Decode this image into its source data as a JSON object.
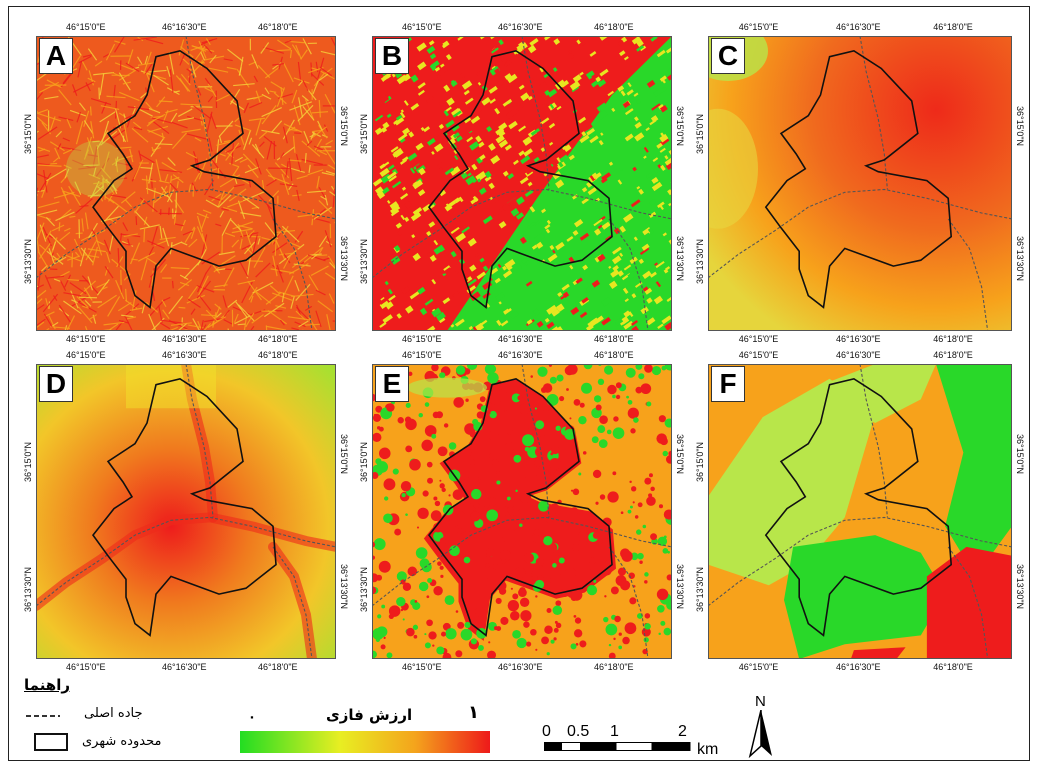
{
  "colors": {
    "ramp_low": "#22dd22",
    "ramp_mid1": "#e8ee22",
    "ramp_mid2": "#f4a41c",
    "ramp_high": "#ee1a1a",
    "orange": "#f7a21b",
    "red": "#ee1c1c",
    "green": "#29d829",
    "yellowgreen": "#b8e64a"
  },
  "panels": [
    {
      "id": "A",
      "ticks_top": [
        "46°15'0\"E",
        "46°16'30\"E",
        "46°18'0\"E"
      ],
      "ticks_bottom": [
        "46°15'0\"E",
        "46°16'30\"E",
        "46°18'0\"E"
      ],
      "ticks_left": [
        "36°15'0\"N",
        "36°13'30\"N"
      ],
      "ticks_right": [
        "36°15'0\"N",
        "36°13'30\"N"
      ]
    },
    {
      "id": "B",
      "ticks_top": [
        "46°15'0\"E",
        "46°16'30\"E",
        "46°18'0\"E"
      ],
      "ticks_bottom": [
        "46°15'0\"E",
        "46°16'30\"E",
        "46°18'0\"E"
      ],
      "ticks_left": [
        "36°15'0\"N",
        "36°13'30\"N"
      ],
      "ticks_right": [
        "36°15'0\"N",
        "36°13'30\"N"
      ]
    },
    {
      "id": "C",
      "ticks_top": [
        "46°15'0\"E",
        "46°16'30\"E",
        "46°18'0\"E"
      ],
      "ticks_bottom": [
        "46°15'0\"E",
        "46°16'30\"E",
        "46°18'0\"E"
      ],
      "ticks_left": [
        "36°15'0\"N",
        "36°13'30\"N"
      ],
      "ticks_right": [
        "36°15'0\"N",
        "36°13'30\"N"
      ]
    },
    {
      "id": "D",
      "ticks_top": [
        "46°15'0\"E",
        "46°16'30\"E",
        "46°18'0\"E"
      ],
      "ticks_bottom": [
        "46°15'0\"E",
        "46°16'30\"E",
        "46°18'0\"E"
      ],
      "ticks_left": [
        "36°15'0\"N",
        "36°13'30\"N"
      ],
      "ticks_right": [
        "36°15'0\"N",
        "36°13'30\"N"
      ]
    },
    {
      "id": "E",
      "ticks_top": [
        "46°15'0\"E",
        "46°16'30\"E",
        "46°18'0\"E"
      ],
      "ticks_bottom": [
        "46°15'0\"E",
        "46°16'30\"E",
        "46°18'0\"E"
      ],
      "ticks_left": [
        "36°15'0\"N",
        "36°13'30\"N"
      ],
      "ticks_right": [
        "36°15'0\"N",
        "36°13'30\"N"
      ]
    },
    {
      "id": "F",
      "ticks_top": [
        "46°15'0\"E",
        "46°16'30\"E",
        "46°18'0\"E"
      ],
      "ticks_bottom": [
        "46°15'0\"E",
        "46°16'30\"E",
        "46°18'0\"E"
      ],
      "ticks_left": [
        "36°15'0\"N",
        "36°13'30\"N"
      ],
      "ticks_right": [
        "36°15'0\"N",
        "36°13'30\"N"
      ]
    }
  ],
  "legend": {
    "title": "راهنما",
    "road_label": "جاده اصلی",
    "boundary_label": "محدوده شهری",
    "ramp_title": "ارزش فازی",
    "ramp_min": "۰",
    "ramp_max": "۱"
  },
  "scalebar": {
    "labels": [
      "0",
      "0.5",
      "1",
      "2"
    ],
    "unit": "km"
  },
  "north_arrow": {
    "label": "N",
    "icon": "north-arrow-icon"
  }
}
